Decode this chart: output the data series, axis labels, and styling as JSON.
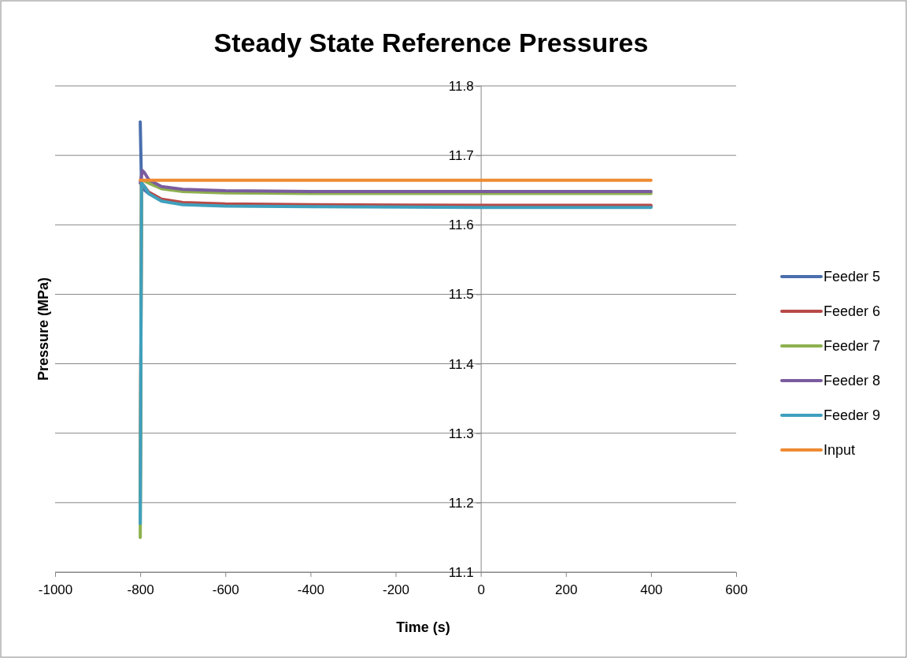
{
  "chart_data": {
    "type": "line",
    "title": "Steady State Reference Pressures",
    "xlabel": "Time (s)",
    "ylabel": "Pressure (MPa)",
    "xlim": [
      -1000,
      600
    ],
    "xticks": [
      -1000,
      -800,
      -600,
      -400,
      -200,
      0,
      200,
      400,
      600
    ],
    "ylim": [
      11.1,
      11.8
    ],
    "yticks": [
      11.1,
      11.2,
      11.3,
      11.4,
      11.5,
      11.6,
      11.7,
      11.8
    ],
    "grid": "y",
    "legend": "right",
    "marker": "none",
    "line_style": "solid",
    "series": [
      {
        "name": "Feeder 5",
        "color": "#4a6fae",
        "x": [
          -800,
          -797,
          -790,
          -780,
          -750,
          -700,
          -600,
          -400,
          0,
          400
        ],
        "values": [
          11.748,
          11.655,
          11.65,
          11.645,
          11.635,
          11.63,
          11.628,
          11.627,
          11.626,
          11.626
        ]
      },
      {
        "name": "Feeder 6",
        "color": "#b84a47",
        "x": [
          -800,
          -797,
          -790,
          -780,
          -750,
          -700,
          -600,
          -400,
          0,
          400
        ],
        "values": [
          11.2,
          11.66,
          11.655,
          11.647,
          11.637,
          11.632,
          11.63,
          11.629,
          11.628,
          11.628
        ]
      },
      {
        "name": "Feeder 7",
        "color": "#8db04e",
        "x": [
          -800,
          -797,
          -790,
          -780,
          -750,
          -700,
          -600,
          -400,
          0,
          400
        ],
        "values": [
          11.15,
          11.665,
          11.663,
          11.66,
          11.652,
          11.648,
          11.646,
          11.645,
          11.645,
          11.645
        ]
      },
      {
        "name": "Feeder 8",
        "color": "#7a5c9e",
        "x": [
          -800,
          -795,
          -790,
          -780,
          -750,
          -700,
          -600,
          -400,
          0,
          400
        ],
        "values": [
          11.66,
          11.678,
          11.675,
          11.665,
          11.655,
          11.651,
          11.649,
          11.648,
          11.648,
          11.648
        ]
      },
      {
        "name": "Feeder 9",
        "color": "#3fa0bd",
        "x": [
          -800,
          -797,
          -790,
          -780,
          -750,
          -700,
          -600,
          -400,
          0,
          400
        ],
        "values": [
          11.17,
          11.66,
          11.655,
          11.645,
          11.634,
          11.629,
          11.627,
          11.626,
          11.625,
          11.625
        ]
      },
      {
        "name": "Input",
        "color": "#ee8a32",
        "x": [
          -800,
          400
        ],
        "values": [
          11.664,
          11.664
        ]
      }
    ]
  }
}
